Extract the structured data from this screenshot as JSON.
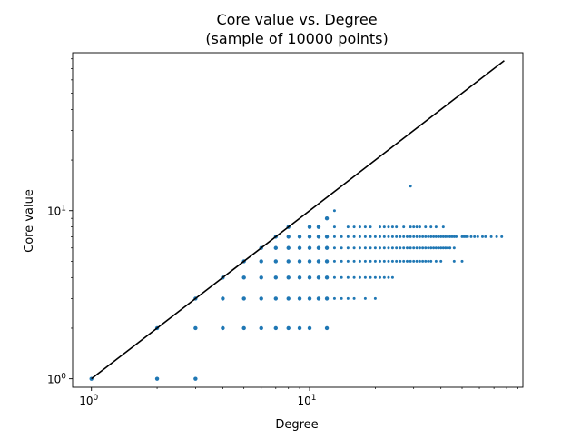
{
  "chart_data": {
    "type": "scatter",
    "title": "Core value vs. Degree",
    "subtitle": "(sample of 10000 points)",
    "xlabel": "Degree",
    "ylabel": "Core value",
    "xscale": "log",
    "yscale": "log",
    "xlim": [
      0.82,
      95
    ],
    "ylim": [
      0.89,
      87
    ],
    "grid": false,
    "x_tick_labels": [
      {
        "value": 1,
        "base": "10",
        "exp": "0"
      },
      {
        "value": 10,
        "base": "10",
        "exp": "1"
      }
    ],
    "y_tick_labels": [
      {
        "value": 1,
        "base": "10",
        "exp": "0"
      },
      {
        "value": 10,
        "base": "10",
        "exp": "1"
      }
    ],
    "series": [
      {
        "type": "scatter",
        "color": "#1f77b4",
        "points_by_core": [
          {
            "core": 1,
            "degrees": [
              1,
              2,
              3
            ]
          },
          {
            "core": 2,
            "degrees": [
              2,
              3,
              4,
              5,
              6,
              7,
              8,
              9,
              10,
              12
            ]
          },
          {
            "core": 3,
            "degrees": [
              3,
              4,
              5,
              6,
              7,
              8,
              9,
              10,
              11,
              12,
              13,
              14,
              15,
              16,
              18,
              20
            ]
          },
          {
            "core": 4,
            "degrees": [
              4,
              5,
              6,
              7,
              8,
              9,
              10,
              11,
              12,
              13,
              14,
              15,
              16,
              17,
              18,
              19,
              20,
              21,
              22,
              23,
              24
            ]
          },
          {
            "core": 5,
            "degrees": [
              5,
              6,
              7,
              8,
              9,
              10,
              11,
              12,
              13,
              14,
              15,
              16,
              17,
              18,
              19,
              20,
              21,
              22,
              23,
              24,
              25,
              26,
              27,
              28,
              29,
              30,
              31,
              32,
              33,
              34,
              35,
              36,
              38,
              40,
              46,
              50
            ]
          },
          {
            "core": 6,
            "degrees": [
              6,
              7,
              8,
              9,
              10,
              11,
              12,
              13,
              14,
              15,
              16,
              17,
              18,
              19,
              20,
              21,
              22,
              23,
              24,
              25,
              26,
              27,
              28,
              29,
              30,
              31,
              32,
              33,
              34,
              35,
              36,
              37,
              38,
              39,
              40,
              41,
              42,
              43,
              44,
              46
            ]
          },
          {
            "core": 7,
            "degrees": [
              7,
              8,
              9,
              10,
              11,
              12,
              13,
              14,
              15,
              16,
              17,
              18,
              19,
              20,
              21,
              22,
              23,
              24,
              25,
              26,
              27,
              28,
              29,
              30,
              31,
              32,
              33,
              34,
              35,
              36,
              37,
              38,
              39,
              40,
              41,
              42,
              43,
              44,
              45,
              46,
              47,
              50,
              51,
              52,
              53,
              55,
              57,
              59,
              62,
              64,
              68,
              72,
              76
            ]
          },
          {
            "core": 8,
            "degrees": [
              8,
              10,
              11,
              13,
              15,
              16,
              17,
              18,
              19,
              21,
              22,
              23,
              24,
              25,
              27,
              29,
              30,
              31,
              32,
              34,
              36,
              38,
              41
            ]
          },
          {
            "core": 9,
            "degrees": [
              12
            ]
          },
          {
            "core": 10,
            "degrees": [
              13
            ]
          },
          {
            "core": 14,
            "degrees": [
              29
            ]
          }
        ]
      },
      {
        "type": "line",
        "color": "#000000",
        "x": [
          1,
          78
        ],
        "y": [
          1,
          78
        ]
      }
    ]
  }
}
